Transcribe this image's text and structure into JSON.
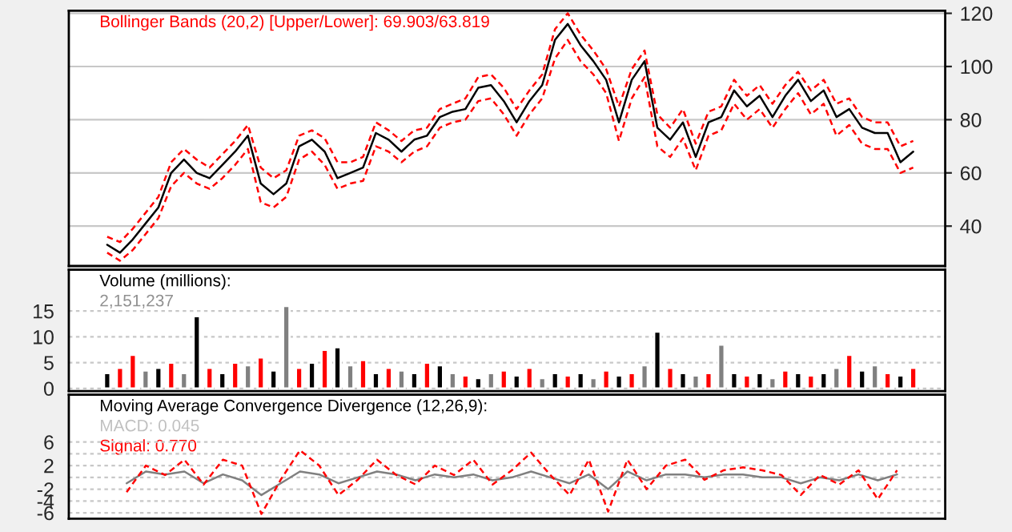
{
  "chart_data": [
    {
      "type": "line",
      "categories": [
        null,
        null,
        null,
        null,
        null,
        null,
        null,
        null,
        null,
        null,
        null,
        null,
        null,
        null,
        null,
        null,
        null,
        null,
        null,
        null,
        null,
        null,
        null,
        null,
        null,
        null,
        null,
        null,
        null,
        null,
        null,
        null,
        null,
        null,
        null,
        null,
        null,
        null,
        null,
        null,
        null,
        null,
        null,
        null,
        null,
        null,
        null,
        null,
        null,
        null,
        null,
        null,
        null,
        null,
        null,
        null,
        null,
        null,
        null,
        null,
        null,
        null,
        null,
        null
      ],
      "series": [
        {
          "color": "#ff0000",
          "line_style": "dashed",
          "values": [
            36,
            34,
            39,
            45,
            51,
            64,
            69,
            65,
            62,
            67,
            72,
            78,
            62,
            58,
            61,
            74,
            76,
            73,
            64,
            64,
            66,
            79,
            76,
            72,
            76,
            77,
            84,
            86,
            88,
            96,
            97,
            92,
            84,
            91,
            97,
            114,
            120,
            112,
            106,
            99,
            85,
            99,
            106,
            82,
            77,
            84,
            71,
            83,
            85,
            95,
            89,
            93,
            86,
            93,
            98,
            91,
            95,
            86,
            88,
            81,
            79,
            79,
            70,
            72
          ]
        },
        {
          "color": "#000000",
          "line_style": "solid",
          "values": [
            33,
            30,
            35,
            41,
            47,
            60,
            65,
            60,
            58,
            63,
            68,
            74,
            56,
            52,
            56,
            70,
            72.5,
            68,
            58,
            60,
            62,
            75,
            72.5,
            68,
            72.5,
            74,
            81,
            83,
            84,
            92,
            93,
            87,
            79,
            87,
            93,
            110,
            116,
            108,
            102,
            95,
            79,
            95,
            102,
            77,
            72.5,
            79,
            66,
            79,
            81,
            91,
            85,
            89,
            81,
            89,
            95,
            87,
            91,
            81,
            84,
            77,
            75,
            75,
            64,
            68
          ]
        },
        {
          "color": "#ff0000",
          "line_style": "dashed",
          "values": [
            30,
            27,
            31,
            37,
            43,
            55,
            60,
            56,
            54,
            58,
            63,
            69,
            49,
            47,
            51,
            65,
            68,
            63,
            54,
            56,
            57,
            70,
            68,
            64,
            68,
            70,
            77,
            79,
            80,
            87,
            88,
            82,
            74,
            82,
            88,
            103,
            110,
            102,
            97,
            90,
            72,
            88,
            96,
            70,
            66,
            73,
            61,
            74,
            76,
            86,
            80,
            84,
            77,
            84,
            90,
            82,
            86,
            74,
            78,
            71,
            69,
            69,
            60,
            62
          ]
        }
      ],
      "ylim": [
        25,
        121
      ],
      "yticks": [
        40,
        60,
        80,
        100,
        120
      ],
      "grid": "y",
      "annotations": [
        "Bollinger Bands (20,2) [Upper/Lower]: 69.903/63.819"
      ]
    },
    {
      "type": "bar",
      "categories": [
        null,
        null,
        null,
        null,
        null,
        null,
        null,
        null,
        null,
        null,
        null,
        null,
        null,
        null,
        null,
        null,
        null,
        null,
        null,
        null,
        null,
        null,
        null,
        null,
        null,
        null,
        null,
        null,
        null,
        null,
        null,
        null,
        null,
        null,
        null,
        null,
        null,
        null,
        null,
        null,
        null,
        null,
        null,
        null,
        null,
        null,
        null,
        null,
        null,
        null,
        null,
        null,
        null,
        null,
        null,
        null,
        null,
        null,
        null,
        null,
        null,
        null,
        null,
        null
      ],
      "values": [
        3,
        4,
        6.5,
        3.5,
        4,
        5,
        3,
        14,
        4,
        3,
        5,
        4.5,
        6,
        3.5,
        16,
        4,
        5,
        7.5,
        8,
        4.5,
        5.5,
        3,
        4,
        3.5,
        3,
        5,
        4.5,
        3,
        2.5,
        2,
        3,
        3.5,
        2.5,
        4,
        2,
        3,
        2.5,
        3,
        2,
        3.5,
        2.5,
        3,
        4.5,
        11,
        4,
        3,
        2.5,
        3,
        8.5,
        3,
        2.5,
        3,
        2,
        3.5,
        3,
        2.5,
        3,
        4,
        6.5,
        3.5,
        4.5,
        3,
        2.5,
        4
      ],
      "colors": [
        "#000000",
        "#ff0000",
        "#ff0000",
        "#808080",
        "#000000",
        "#ff0000",
        "#808080",
        "#000000",
        "#ff0000",
        "#000000",
        "#ff0000",
        "#808080",
        "#ff0000",
        "#000000",
        "#808080",
        "#ff0000",
        "#000000",
        "#ff0000",
        "#000000",
        "#808080",
        "#ff0000",
        "#000000",
        "#ff0000",
        "#808080",
        "#000000",
        "#ff0000",
        "#000000",
        "#808080",
        "#ff0000",
        "#000000",
        "#808080",
        "#ff0000",
        "#000000",
        "#ff0000",
        "#808080",
        "#000000",
        "#ff0000",
        "#000000",
        "#808080",
        "#ff0000",
        "#000000",
        "#ff0000",
        "#808080",
        "#000000",
        "#ff0000",
        "#000000",
        "#808080",
        "#ff0000",
        "#808080",
        "#000000",
        "#ff0000",
        "#000000",
        "#808080",
        "#ff0000",
        "#000000",
        "#ff0000",
        "#000000",
        "#808080",
        "#ff0000",
        "#000000",
        "#808080",
        "#ff0000",
        "#000000",
        "#ff0000"
      ],
      "ylim": [
        -0.5,
        23
      ],
      "yticks": [
        0,
        5,
        10,
        15
      ],
      "grid": "y",
      "annotations": [
        "Volume (millions):",
        "2,151,237"
      ]
    },
    {
      "type": "line",
      "categories": [
        null,
        null,
        null,
        null,
        null,
        null,
        null,
        null,
        null,
        null,
        null,
        null,
        null,
        null,
        null,
        null,
        null,
        null,
        null,
        null,
        null,
        null,
        null,
        null,
        null,
        null,
        null,
        null,
        null,
        null,
        null,
        null,
        null,
        null,
        null,
        null,
        null,
        null,
        null,
        null,
        null
      ],
      "series": [
        {
          "color": "#808080",
          "line_style": "solid",
          "values": [
            -1,
            1,
            0.5,
            1,
            -1,
            0.5,
            -0.5,
            -3,
            -1,
            1,
            0.5,
            -1,
            0,
            1,
            0.5,
            -0.5,
            0.5,
            0,
            0.5,
            -0.5,
            0,
            1,
            0,
            -1,
            0.5,
            -2,
            1,
            -0.5,
            0.5,
            0.5,
            0,
            0.5,
            0.5,
            0,
            0,
            -1,
            0,
            -0.5,
            0.5,
            -0.5,
            0.5
          ]
        },
        {
          "color": "#ff0000",
          "line_style": "dashed",
          "values": [
            -2.5,
            2,
            0.4,
            3,
            -1.2,
            3,
            2,
            -6.2,
            -0.4,
            4.6,
            2,
            -3,
            -0.4,
            3,
            0.4,
            -1.2,
            2,
            0.4,
            3,
            -1.2,
            1.2,
            4.2,
            0.4,
            -3,
            3,
            -5.8,
            3,
            -2,
            2,
            3,
            -0.4,
            1.2,
            1.7,
            1.2,
            0.4,
            -3,
            0.4,
            -1.2,
            1.2,
            -3.7,
            1.2
          ]
        }
      ],
      "ylim": [
        -7,
        14
      ],
      "yticks": [
        6,
        {
          "value": 4,
          "label": null
        },
        2,
        {
          "value": 0,
          "label": null
        },
        -2,
        -4,
        -6
      ],
      "grid": "y",
      "annotations": [
        "Moving Average Convergence Divergence (12,26,9):",
        "MACD: 0.045",
        "Signal: 0.770"
      ]
    }
  ]
}
